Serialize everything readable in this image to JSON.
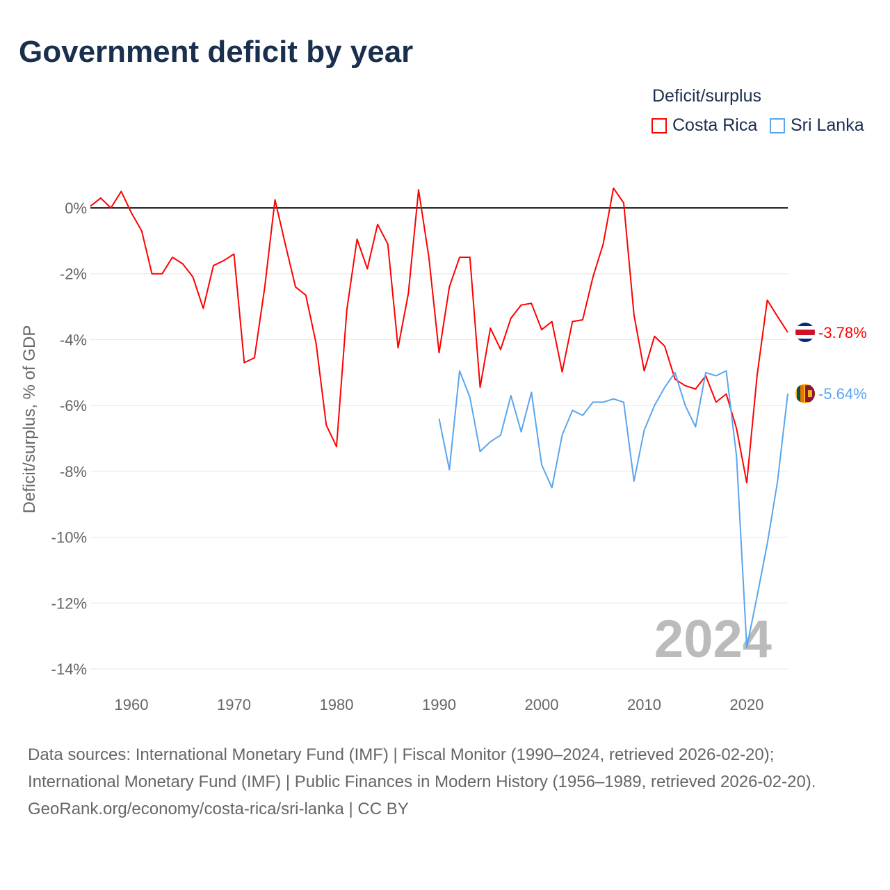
{
  "title": "Government deficit by year",
  "legend": {
    "title": "Deficit/surplus",
    "items": [
      {
        "name": "Costa Rica",
        "color": "#ff0000"
      },
      {
        "name": "Sri Lanka",
        "color": "#5aa5ee"
      }
    ]
  },
  "watermark_year": "2024",
  "footer": {
    "sources": "Data sources: International Monetary Fund (IMF) | Fiscal Monitor (1990–2024, retrieved 2026-02-20); International Monetary Fund (IMF) | Public Finances in Modern History (1956–1989, retrieved 2026-02-20).",
    "credit": "GeoRank.org/economy/costa-rica/sri-lanka | CC BY"
  },
  "chart_data": {
    "type": "line",
    "title": "Government deficit by year",
    "xlabel": "",
    "ylabel": "Deficit/surplus, % of GDP",
    "xlim": [
      1956,
      2024
    ],
    "ylim": [
      -14,
      0
    ],
    "xticks": [
      1960,
      1970,
      1980,
      1990,
      2000,
      2010,
      2020
    ],
    "yticks": [
      0,
      -2,
      -4,
      -6,
      -8,
      -10,
      -12,
      -14
    ],
    "ytick_labels": [
      "0%",
      "-2%",
      "-4%",
      "-6%",
      "-8%",
      "-10%",
      "-12%",
      "-14%"
    ],
    "grid": true,
    "legend_position": "top-right",
    "series": [
      {
        "name": "Costa Rica",
        "color": "#ff0000",
        "end_label": "-3.78%",
        "start_year": 1956,
        "values": [
          0.05,
          0.3,
          0.0,
          0.5,
          -0.15,
          -0.7,
          -2.0,
          -2.0,
          -1.5,
          -1.7,
          -2.1,
          -3.05,
          -1.75,
          -1.6,
          -1.4,
          -4.7,
          -4.55,
          -2.4,
          0.25,
          -1.1,
          -2.4,
          -2.65,
          -4.1,
          -6.6,
          -7.25,
          -3.1,
          -0.95,
          -1.85,
          -0.5,
          -1.1,
          -4.25,
          -2.6,
          0.55,
          -1.5,
          -4.4,
          -2.4,
          -1.5,
          -1.5,
          -5.45,
          -3.65,
          -4.3,
          -3.35,
          -2.95,
          -2.9,
          -3.7,
          -3.45,
          -4.98,
          -3.45,
          -3.4,
          -2.1,
          -1.1,
          0.6,
          0.15,
          -3.25,
          -4.95,
          -3.9,
          -4.2,
          -5.2,
          -5.4,
          -5.5,
          -5.1,
          -5.9,
          -5.65,
          -6.7,
          -8.35,
          -5.1,
          -2.8,
          -3.3,
          -3.78
        ]
      },
      {
        "name": "Sri Lanka",
        "color": "#5aa5ee",
        "end_label": "-5.64%",
        "start_year": 1990,
        "values": [
          -6.4,
          -7.95,
          -4.95,
          -5.75,
          -7.4,
          -7.1,
          -6.9,
          -5.7,
          -6.8,
          -5.6,
          -7.8,
          -8.5,
          -6.9,
          -6.15,
          -6.3,
          -5.9,
          -5.9,
          -5.8,
          -5.9,
          -8.3,
          -6.75,
          -6.0,
          -5.45,
          -5.0,
          -6.0,
          -6.65,
          -5.0,
          -5.1,
          -4.95,
          -7.55,
          -13.35,
          -11.8,
          -10.2,
          -8.3,
          -5.64
        ]
      }
    ]
  }
}
